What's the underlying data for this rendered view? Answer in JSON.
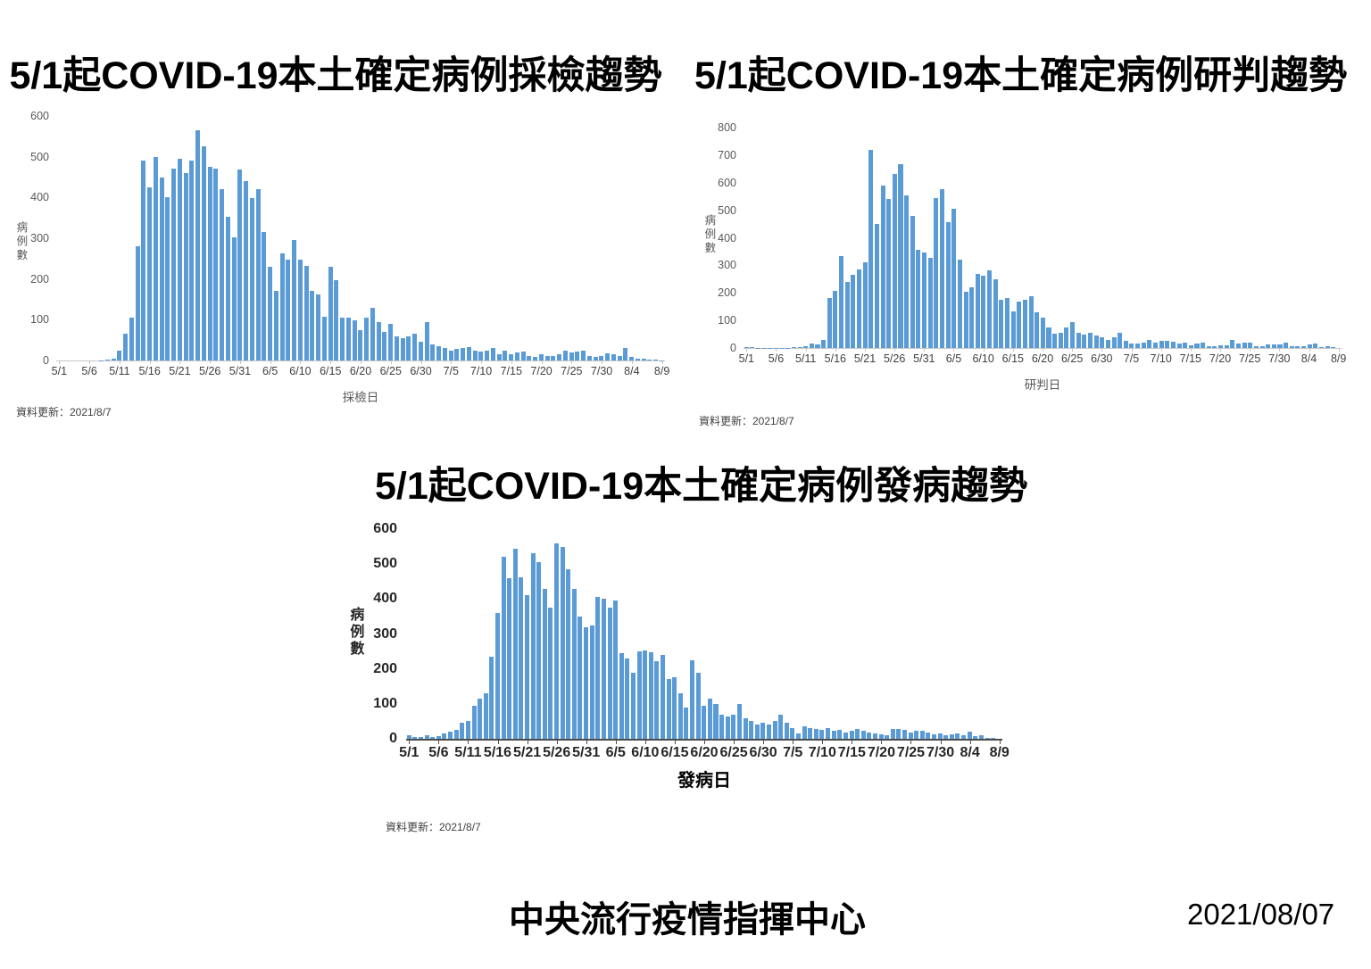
{
  "page": {
    "org": "中央流行疫情指揮中心",
    "date": "2021/08/07"
  },
  "colors": {
    "bar": "#5b9bd5",
    "axis_light": "#c6c6c6",
    "axis_dark": "#4d4d4d"
  },
  "chart_data": [
    {
      "type": "bar",
      "title": "5/1起COVID-19本土確定病例採檢趨勢",
      "xlabel": "採檢日",
      "ylabel": "病例數",
      "update_note": "資料更新：2021/8/7",
      "ylim": [
        0,
        600
      ],
      "ytick_step": 100,
      "grid": false,
      "legend": "none",
      "x_tick_labels": [
        "5/1",
        "5/6",
        "5/11",
        "5/16",
        "5/21",
        "5/26",
        "5/31",
        "6/5",
        "6/10",
        "6/15",
        "6/20",
        "6/25",
        "6/30",
        "7/5",
        "7/10",
        "7/15",
        "7/20",
        "7/25",
        "7/30",
        "8/4",
        "8/9"
      ],
      "categories": [
        "5/1",
        "5/2",
        "5/3",
        "5/4",
        "5/5",
        "5/6",
        "5/7",
        "5/8",
        "5/9",
        "5/10",
        "5/11",
        "5/12",
        "5/13",
        "5/14",
        "5/15",
        "5/16",
        "5/17",
        "5/18",
        "5/19",
        "5/20",
        "5/21",
        "5/22",
        "5/23",
        "5/24",
        "5/25",
        "5/26",
        "5/27",
        "5/28",
        "5/29",
        "5/30",
        "5/31",
        "6/1",
        "6/2",
        "6/3",
        "6/4",
        "6/5",
        "6/6",
        "6/7",
        "6/8",
        "6/9",
        "6/10",
        "6/11",
        "6/12",
        "6/13",
        "6/14",
        "6/15",
        "6/16",
        "6/17",
        "6/18",
        "6/19",
        "6/20",
        "6/21",
        "6/22",
        "6/23",
        "6/24",
        "6/25",
        "6/26",
        "6/27",
        "6/28",
        "6/29",
        "6/30",
        "7/1",
        "7/2",
        "7/3",
        "7/4",
        "7/5",
        "7/6",
        "7/7",
        "7/8",
        "7/9",
        "7/10",
        "7/11",
        "7/12",
        "7/13",
        "7/14",
        "7/15",
        "7/16",
        "7/17",
        "7/18",
        "7/19",
        "7/20",
        "7/21",
        "7/22",
        "7/23",
        "7/24",
        "7/25",
        "7/26",
        "7/27",
        "7/28",
        "7/29",
        "7/30",
        "7/31",
        "8/1",
        "8/2",
        "8/3",
        "8/4",
        "8/5",
        "8/6",
        "8/7",
        "8/8",
        "8/9"
      ],
      "values": [
        0,
        0,
        0,
        0,
        0,
        0,
        0,
        1,
        2,
        4,
        25,
        65,
        105,
        280,
        490,
        425,
        500,
        450,
        400,
        470,
        495,
        460,
        490,
        565,
        525,
        475,
        470,
        420,
        352,
        302,
        469,
        440,
        398,
        420,
        316,
        230,
        171,
        262,
        247,
        295,
        248,
        232,
        170,
        163,
        108,
        229,
        198,
        106,
        106,
        98,
        75,
        105,
        130,
        95,
        70,
        90,
        60,
        55,
        60,
        65,
        45,
        95,
        40,
        35,
        30,
        25,
        28,
        30,
        32,
        25,
        22,
        25,
        30,
        15,
        25,
        15,
        20,
        22,
        10,
        8,
        15,
        10,
        10,
        15,
        25,
        20,
        22,
        25,
        12,
        8,
        10,
        18,
        15,
        12,
        30,
        8,
        5,
        4,
        3,
        2,
        1
      ]
    },
    {
      "type": "bar",
      "title": "5/1起COVID-19本土確定病例研判趨勢",
      "xlabel": "研判日",
      "ylabel": "病例數",
      "update_note": "資料更新：2021/8/7",
      "ylim": [
        0,
        800
      ],
      "ytick_step": 100,
      "grid": false,
      "legend": "none",
      "x_tick_labels": [
        "5/1",
        "5/6",
        "5/11",
        "5/16",
        "5/21",
        "5/26",
        "5/31",
        "6/5",
        "6/10",
        "6/15",
        "6/20",
        "6/25",
        "6/30",
        "7/5",
        "7/10",
        "7/15",
        "7/20",
        "7/25",
        "7/30",
        "8/4",
        "8/9"
      ],
      "categories": [
        "5/1",
        "5/2",
        "5/3",
        "5/4",
        "5/5",
        "5/6",
        "5/7",
        "5/8",
        "5/9",
        "5/10",
        "5/11",
        "5/12",
        "5/13",
        "5/14",
        "5/15",
        "5/16",
        "5/17",
        "5/18",
        "5/19",
        "5/20",
        "5/21",
        "5/22",
        "5/23",
        "5/24",
        "5/25",
        "5/26",
        "5/27",
        "5/28",
        "5/29",
        "5/30",
        "5/31",
        "6/1",
        "6/2",
        "6/3",
        "6/4",
        "6/5",
        "6/6",
        "6/7",
        "6/8",
        "6/9",
        "6/10",
        "6/11",
        "6/12",
        "6/13",
        "6/14",
        "6/15",
        "6/16",
        "6/17",
        "6/18",
        "6/19",
        "6/20",
        "6/21",
        "6/22",
        "6/23",
        "6/24",
        "6/25",
        "6/26",
        "6/27",
        "6/28",
        "6/29",
        "6/30",
        "7/1",
        "7/2",
        "7/3",
        "7/4",
        "7/5",
        "7/6",
        "7/7",
        "7/8",
        "7/9",
        "7/10",
        "7/11",
        "7/12",
        "7/13",
        "7/14",
        "7/15",
        "7/16",
        "7/17",
        "7/18",
        "7/19",
        "7/20",
        "7/21",
        "7/22",
        "7/23",
        "7/24",
        "7/25",
        "7/26",
        "7/27",
        "7/28",
        "7/29",
        "7/30",
        "7/31",
        "8/1",
        "8/2",
        "8/3",
        "8/4",
        "8/5",
        "8/6",
        "8/7",
        "8/8",
        "8/9"
      ],
      "values": [
        2,
        3,
        1,
        1,
        1,
        1,
        1,
        1,
        2,
        2,
        7,
        15,
        13,
        29,
        180,
        206,
        333,
        240,
        267,
        286,
        312,
        720,
        450,
        590,
        542,
        632,
        667,
        555,
        481,
        355,
        347,
        327,
        545,
        578,
        457,
        505,
        320,
        205,
        220,
        270,
        263,
        281,
        250,
        174,
        181,
        132,
        167,
        175,
        187,
        130,
        110,
        75,
        52,
        54,
        76,
        95,
        55,
        50,
        55,
        45,
        40,
        30,
        40,
        55,
        25,
        15,
        15,
        20,
        30,
        18,
        25,
        25,
        22,
        15,
        18,
        10,
        15,
        20,
        5,
        8,
        10,
        10,
        30,
        15,
        18,
        20,
        8,
        8,
        12,
        12,
        12,
        18,
        8,
        8,
        8,
        12,
        15,
        3,
        8,
        3,
        0
      ]
    },
    {
      "type": "bar",
      "title": "5/1起COVID-19本土確定病例發病趨勢",
      "xlabel": "發病日",
      "ylabel": "病例數",
      "update_note": "資料更新：2021/8/7",
      "ylim": [
        0,
        600
      ],
      "ytick_step": 100,
      "grid": false,
      "legend": "none",
      "x_tick_labels": [
        "5/1",
        "5/6",
        "5/11",
        "5/16",
        "5/21",
        "5/26",
        "5/31",
        "6/5",
        "6/10",
        "6/15",
        "6/20",
        "6/25",
        "6/30",
        "7/5",
        "7/10",
        "7/15",
        "7/20",
        "7/25",
        "7/30",
        "8/4",
        "8/9"
      ],
      "categories": [
        "5/1",
        "5/2",
        "5/3",
        "5/4",
        "5/5",
        "5/6",
        "5/7",
        "5/8",
        "5/9",
        "5/10",
        "5/11",
        "5/12",
        "5/13",
        "5/14",
        "5/15",
        "5/16",
        "5/17",
        "5/18",
        "5/19",
        "5/20",
        "5/21",
        "5/22",
        "5/23",
        "5/24",
        "5/25",
        "5/26",
        "5/27",
        "5/28",
        "5/29",
        "5/30",
        "5/31",
        "6/1",
        "6/2",
        "6/3",
        "6/4",
        "6/5",
        "6/6",
        "6/7",
        "6/8",
        "6/9",
        "6/10",
        "6/11",
        "6/12",
        "6/13",
        "6/14",
        "6/15",
        "6/16",
        "6/17",
        "6/18",
        "6/19",
        "6/20",
        "6/21",
        "6/22",
        "6/23",
        "6/24",
        "6/25",
        "6/26",
        "6/27",
        "6/28",
        "6/29",
        "6/30",
        "7/1",
        "7/2",
        "7/3",
        "7/4",
        "7/5",
        "7/6",
        "7/7",
        "7/8",
        "7/9",
        "7/10",
        "7/11",
        "7/12",
        "7/13",
        "7/14",
        "7/15",
        "7/16",
        "7/17",
        "7/18",
        "7/19",
        "7/20",
        "7/21",
        "7/22",
        "7/23",
        "7/24",
        "7/25",
        "7/26",
        "7/27",
        "7/28",
        "7/29",
        "7/30",
        "7/31",
        "8/1",
        "8/2",
        "8/3",
        "8/4",
        "8/5",
        "8/6",
        "8/7",
        "8/8",
        "8/9"
      ],
      "values": [
        10,
        6,
        5,
        10,
        4,
        8,
        15,
        20,
        25,
        45,
        50,
        95,
        115,
        130,
        235,
        360,
        520,
        460,
        545,
        462,
        412,
        530,
        505,
        430,
        375,
        560,
        550,
        485,
        430,
        350,
        320,
        325,
        405,
        400,
        375,
        395,
        245,
        230,
        190,
        250,
        252,
        248,
        222,
        240,
        170,
        175,
        130,
        90,
        225,
        190,
        95,
        115,
        100,
        70,
        65,
        70,
        100,
        60,
        50,
        40,
        45,
        40,
        50,
        70,
        45,
        30,
        15,
        35,
        30,
        28,
        25,
        30,
        22,
        25,
        18,
        22,
        28,
        22,
        18,
        15,
        12,
        10,
        28,
        28,
        25,
        18,
        22,
        22,
        18,
        12,
        15,
        10,
        12,
        15,
        10,
        20,
        8,
        10,
        3,
        2,
        0
      ]
    }
  ]
}
